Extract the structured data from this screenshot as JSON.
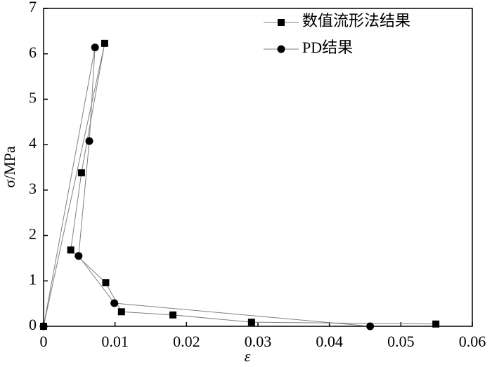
{
  "chart_data": {
    "type": "line-scatter",
    "x_label": "ε",
    "y_label": "σ/MPa",
    "xlim": [
      0,
      0.06
    ],
    "xticks": [
      0,
      0.01,
      0.02,
      0.03,
      0.04,
      0.05,
      0.06
    ],
    "ylim": [
      0,
      7
    ],
    "yticks": [
      0,
      1,
      2,
      3,
      4,
      5,
      6,
      7
    ],
    "legend": "top-right",
    "series": [
      {
        "name": "数值流形法结果",
        "color": "#000000",
        "line_color": "#808080",
        "marker": "square",
        "x": [
          0,
          0.00855,
          0.0053,
          0.0038,
          0.0087,
          0.0109,
          0.0181,
          0.0291,
          0.0549
        ],
        "values": [
          0,
          6.23,
          3.38,
          1.68,
          0.96,
          0.32,
          0.25,
          0.09,
          0.05
        ]
      },
      {
        "name": "PD结果",
        "color": "#000000",
        "line_color": "#808080",
        "marker": "circle",
        "x": [
          0,
          0.0072,
          0.0064,
          0.0049,
          0.0099,
          0.0457
        ],
        "values": [
          0,
          6.14,
          4.08,
          1.55,
          0.51,
          0.0
        ]
      }
    ]
  }
}
